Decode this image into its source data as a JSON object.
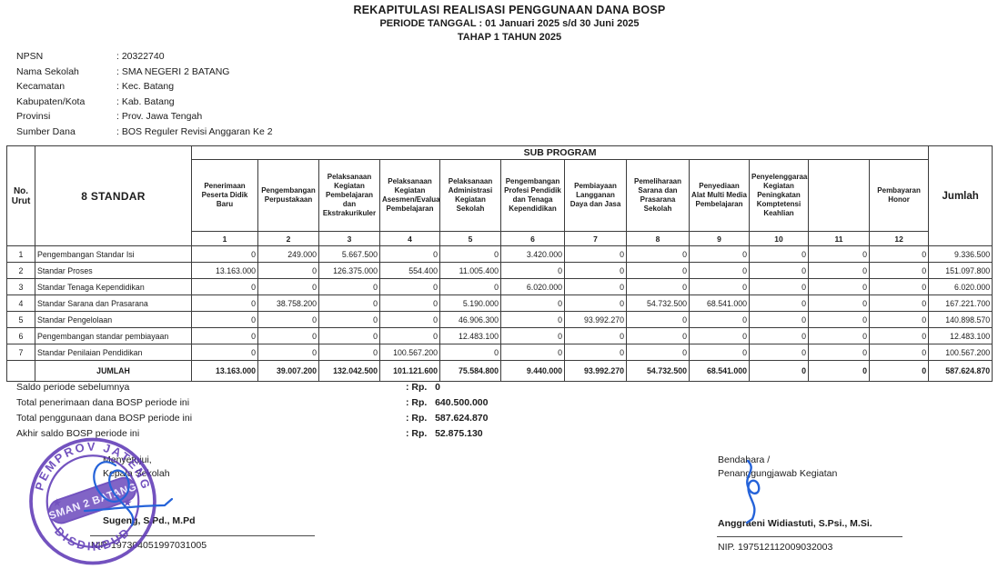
{
  "title": {
    "line1": "REKAPITULASI REALISASI PENGGUNAAN DANA BOSP",
    "line2": "PERIODE TANGGAL : 01 Januari 2025 s/d 30 Juni 2025",
    "line3": "TAHAP 1 TAHUN 2025"
  },
  "info": {
    "rows": [
      {
        "label": "NPSN",
        "value": ": 20322740"
      },
      {
        "label": "Nama Sekolah",
        "value": ": SMA NEGERI 2 BATANG"
      },
      {
        "label": "Kecamatan",
        "value": ": Kec. Batang"
      },
      {
        "label": "Kabupaten/Kota",
        "value": ": Kab. Batang"
      },
      {
        "label": "Provinsi",
        "value": ": Prov. Jawa Tengah"
      },
      {
        "label": "Sumber Dana",
        "value": ": BOS Reguler Revisi Anggaran Ke 2"
      }
    ]
  },
  "table": {
    "headers": {
      "no_urut": "No. Urut",
      "standar": "8 STANDAR",
      "sub_program": "SUB PROGRAM",
      "jumlah": "Jumlah"
    },
    "sub_columns": [
      "Penerimaan Peserta Didik Baru",
      "Pengembangan Perpustakaan",
      "Pelaksanaan Kegiatan Pembelajaran dan Ekstrakurikuler",
      "Pelaksanaan Kegiatan Asesmen/Evaluasi Pembelajaran",
      "Pelaksanaan Administrasi Kegiatan Sekolah",
      "Pengembangan Profesi Pendidik dan Tenaga Kependidikan",
      "Pembiayaan Langganan Daya dan Jasa",
      "Pemeliharaan Sarana dan Prasarana Sekolah",
      "Penyediaan Alat Multi Media Pembelajaran",
      "Penyelenggaraan Kegiatan Peningkatan Komptetensi Keahlian",
      "",
      "Pembayaran Honor"
    ],
    "column_numbers": [
      "1",
      "2",
      "3",
      "4",
      "5",
      "6",
      "7",
      "8",
      "9",
      "10",
      "11",
      "12"
    ],
    "rows": [
      {
        "no": "1",
        "label": "Pengembangan Standar Isi",
        "values": [
          "0",
          "249.000",
          "5.667.500",
          "0",
          "0",
          "3.420.000",
          "0",
          "0",
          "0",
          "0",
          "0",
          "0"
        ],
        "jumlah": "9.336.500"
      },
      {
        "no": "2",
        "label": "Standar Proses",
        "values": [
          "13.163.000",
          "0",
          "126.375.000",
          "554.400",
          "11.005.400",
          "0",
          "0",
          "0",
          "0",
          "0",
          "0",
          "0"
        ],
        "jumlah": "151.097.800"
      },
      {
        "no": "3",
        "label": "Standar Tenaga Kependidikan",
        "values": [
          "0",
          "0",
          "0",
          "0",
          "0",
          "6.020.000",
          "0",
          "0",
          "0",
          "0",
          "0",
          "0"
        ],
        "jumlah": "6.020.000"
      },
      {
        "no": "4",
        "label": "Standar Sarana dan Prasarana",
        "values": [
          "0",
          "38.758.200",
          "0",
          "0",
          "5.190.000",
          "0",
          "0",
          "54.732.500",
          "68.541.000",
          "0",
          "0",
          "0"
        ],
        "jumlah": "167.221.700"
      },
      {
        "no": "5",
        "label": "Standar Pengelolaan",
        "values": [
          "0",
          "0",
          "0",
          "0",
          "46.906.300",
          "0",
          "93.992.270",
          "0",
          "0",
          "0",
          "0",
          "0"
        ],
        "jumlah": "140.898.570"
      },
      {
        "no": "6",
        "label": "Pengembangan standar pembiayaan",
        "values": [
          "0",
          "0",
          "0",
          "0",
          "12.483.100",
          "0",
          "0",
          "0",
          "0",
          "0",
          "0",
          "0"
        ],
        "jumlah": "12.483.100"
      },
      {
        "no": "7",
        "label": "Standar Penilaian Pendidikan",
        "values": [
          "0",
          "0",
          "0",
          "100.567.200",
          "0",
          "0",
          "0",
          "0",
          "0",
          "0",
          "0",
          "0"
        ],
        "jumlah": "100.567.200"
      }
    ],
    "total_row": {
      "label": "JUMLAH",
      "values": [
        "13.163.000",
        "39.007.200",
        "132.042.500",
        "101.121.600",
        "75.584.800",
        "9.440.000",
        "93.992.270",
        "54.732.500",
        "68.541.000",
        "0",
        "0",
        "0"
      ],
      "jumlah": "587.624.870"
    }
  },
  "summary": {
    "rows": [
      {
        "label": "Saldo periode sebelumnya",
        "value": ": Rp.   0"
      },
      {
        "label": "Total penerimaan dana BOSP periode ini",
        "value": ": Rp.   640.500.000"
      },
      {
        "label": "Total penggunaan dana BOSP periode ini",
        "value": ": Rp.   587.624.870"
      },
      {
        "label": "Akhir saldo BOSP periode ini",
        "value": ": Rp.   52.875.130"
      }
    ]
  },
  "signatures": {
    "left": {
      "role_line1": "Menyetujui,",
      "role_line2": "Kepala Sekolah",
      "name": "Sugeng, S.Pd., M.Pd",
      "nip": "NIP. 197304051997031005"
    },
    "right": {
      "role_line1": "Bendahara /",
      "role_line2": "Penanggungjawab Kegiatan",
      "name": "Anggraeni Widiastuti, S.Psi., M.Si.",
      "nip": "NIP. 197512112009032003"
    }
  },
  "stamp": {
    "top_text": "PEMPROV JATENG",
    "bottom_text": "DISDIKBUD",
    "band_text": "SMAN 2 BATANG",
    "star": "★",
    "color": "#5b35b5"
  },
  "colors": {
    "ink": "#1c1c1c",
    "table_border": "#3c3c3c",
    "stamp_purple": "#5b35b5",
    "signature_blue": "#2563d9"
  }
}
